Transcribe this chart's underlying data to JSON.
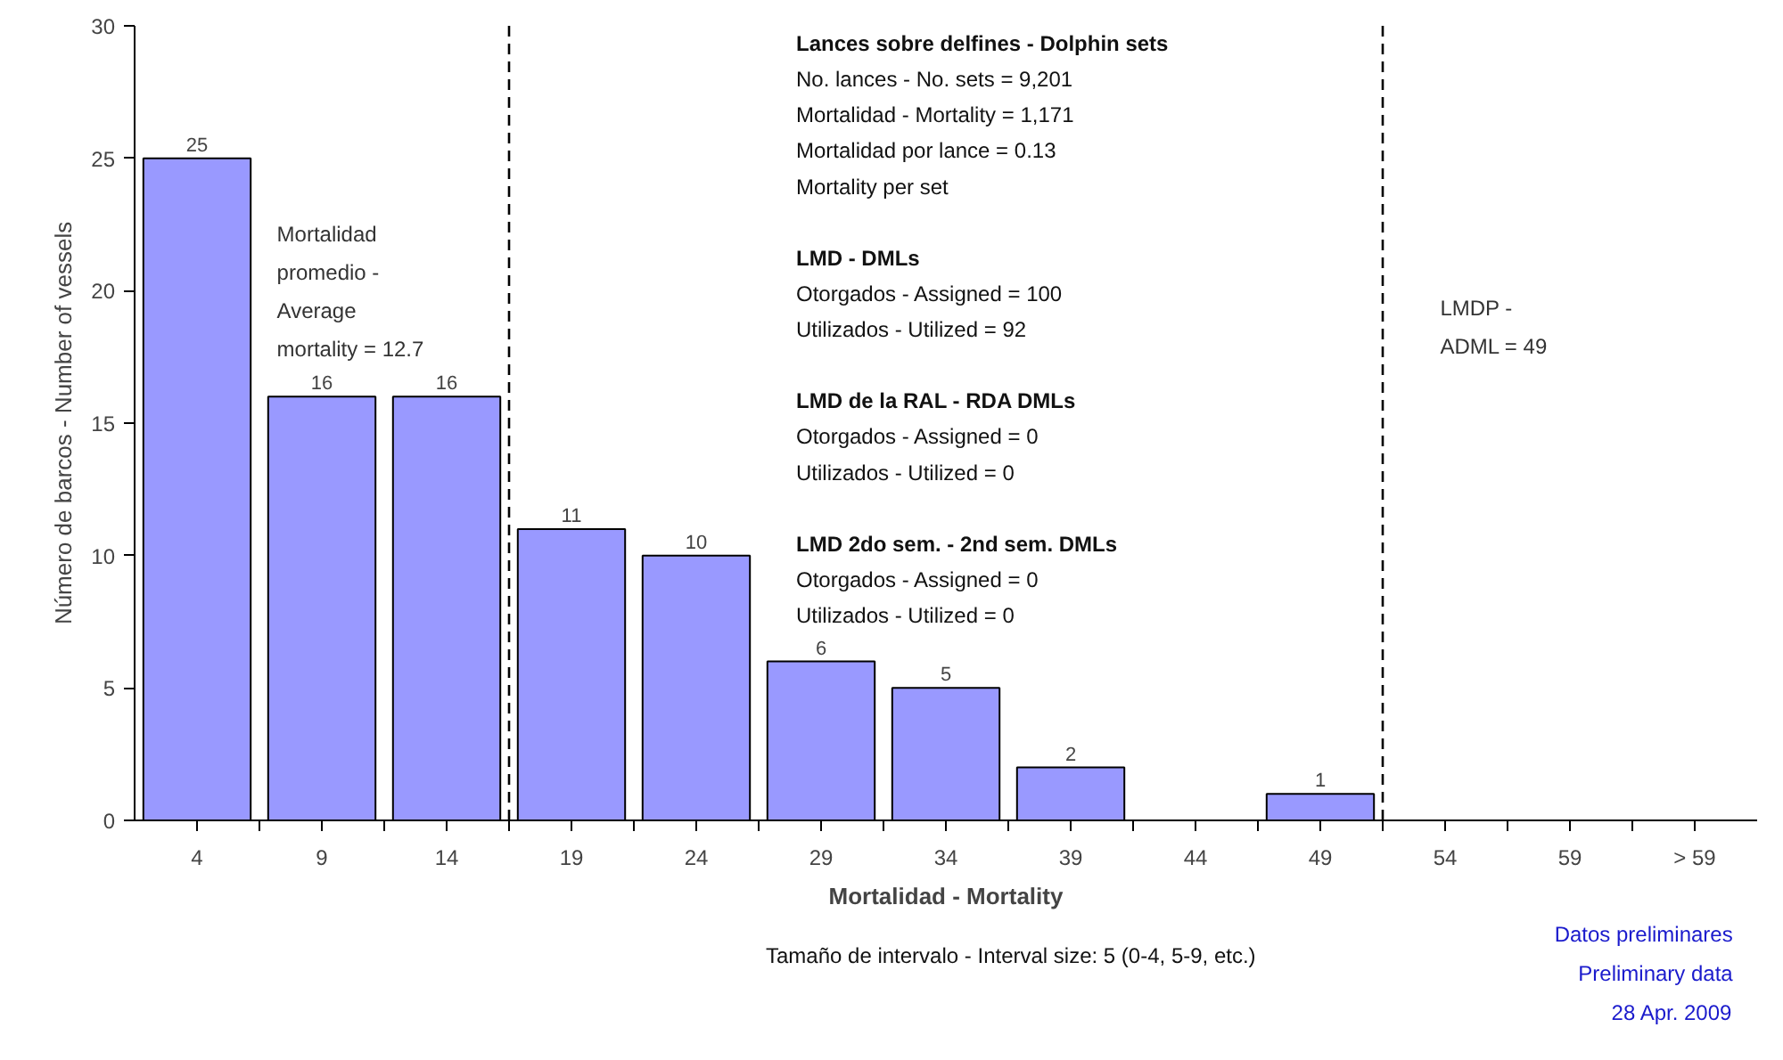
{
  "chart_data": {
    "type": "bar",
    "xlabel": "Mortalidad - Mortality",
    "ylabel": "Número de barcos - Number of vessels",
    "x": [
      4,
      9,
      14,
      19,
      24,
      29,
      34,
      39,
      44,
      49,
      54,
      59,
      64
    ],
    "values": [
      25,
      16,
      16,
      11,
      10,
      6,
      5,
      2,
      0,
      1,
      0,
      0,
      0
    ],
    "value_labels": [
      "25",
      "16",
      "16",
      "11",
      "10",
      "6",
      "5",
      "2",
      null,
      "1",
      null,
      null,
      null
    ],
    "color": "#9999ff",
    "xlim": [
      1.5,
      66.5
    ],
    "xticks": [
      4,
      9,
      14,
      19,
      24,
      29,
      34,
      39,
      44,
      49,
      54,
      59,
      {
        "value": 64,
        "label": "> 59"
      },
      {
        "value": 6.5,
        "label": null
      },
      {
        "value": 11.5,
        "label": null
      },
      {
        "value": 16.5,
        "label": null
      },
      {
        "value": 21.5,
        "label": null
      },
      {
        "value": 26.5,
        "label": null
      },
      {
        "value": 31.5,
        "label": null
      },
      {
        "value": 36.5,
        "label": null
      },
      {
        "value": 41.5,
        "label": null
      },
      {
        "value": 46.5,
        "label": null
      },
      {
        "value": 51.5,
        "label": null
      },
      {
        "value": 56.5,
        "label": null
      },
      {
        "value": 61.5,
        "label": null
      }
    ],
    "ylim": [
      0,
      30
    ],
    "yticks": [
      0,
      5,
      10,
      15,
      20,
      25,
      30
    ],
    "grid": false,
    "ref_lines": [
      {
        "axis": "x",
        "value": 16.5,
        "line_style": "dashed",
        "color": "#000000"
      },
      {
        "axis": "x",
        "value": 51.5,
        "line_style": "dashed",
        "color": "#000000"
      }
    ],
    "annotations": [
      "Mortalidad\npromedio -\nAverage\nmortality = 12.7",
      "Lances sobre delfines - Dolphin sets\nNo. lances - No. sets = 9,201\nMortalidad - Mortality = 1,171\nMortalidad por lance = 0.13\nMortality per set\n\nLMD - DMLs\nOtorgados - Assigned = 100\nUtilizados - Utilized = 92\n\nLMD de la RAL - RDA DMLs\nOtorgados - Assigned = 0\nUtilizados - Utilized = 0\n\nLMD 2do sem. - 2nd sem. DMLs\nOtorgados - Assigned = 0\nUtilizados - Utilized = 0",
      "LMDP -\nADML = 49",
      "Tamaño de intervalo - Interval size: 5 (0-4, 5-9, etc.)",
      "Datos preliminares\nPreliminary data\n28 Apr. 2009"
    ]
  }
}
